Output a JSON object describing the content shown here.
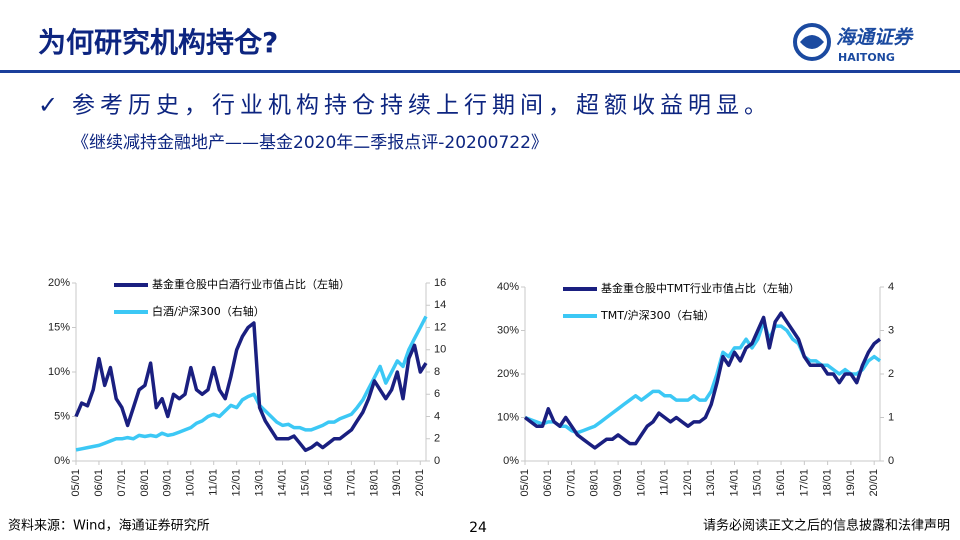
{
  "header": {
    "title": "为何研究机构持仓?",
    "logo_cn": "海通证券",
    "logo_en": "HAITONG"
  },
  "bullet": "参考历史，行业机构持仓持续上行期间，超额收益明显。",
  "source_ref": "《继续减持金融地产——基金2020年二季报点评-20200722》",
  "footer": {
    "source": "资料来源：Wind，海通证券研究所",
    "page": "24",
    "disclaimer": "请务必阅读正文之后的信息披露和法律声明"
  },
  "chart_data": [
    {
      "type": "line",
      "categories": [
        "05/01",
        null,
        null,
        null,
        "06/01",
        null,
        null,
        null,
        "07/01",
        null,
        null,
        null,
        "08/01",
        null,
        null,
        null,
        "09/01",
        null,
        null,
        null,
        "10/01",
        null,
        null,
        null,
        "11/01",
        null,
        null,
        null,
        "12/01",
        null,
        null,
        null,
        "13/01",
        null,
        null,
        null,
        "14/01",
        null,
        null,
        null,
        "15/01",
        null,
        null,
        null,
        "16/01",
        null,
        null,
        null,
        "17/01",
        null,
        null,
        null,
        "18/01",
        null,
        null,
        null,
        "19/01",
        null,
        null,
        null,
        "20/01",
        null
      ],
      "series": [
        {
          "name": "基金重仓股中白酒行业市值占比（左轴）",
          "color": "#1a1f80",
          "axis": "y",
          "values": [
            5,
            6.5,
            6.2,
            8,
            11.5,
            8.5,
            10.5,
            7,
            6,
            4,
            6,
            8,
            8.5,
            11,
            6,
            7,
            5,
            7.5,
            7,
            7.5,
            10.5,
            8,
            7.5,
            8,
            10.5,
            8,
            7,
            9.5,
            12.5,
            14,
            15,
            15.5,
            6,
            4.5,
            3.5,
            2.5,
            2.5,
            2.5,
            2.8,
            2,
            1.2,
            1.5,
            2,
            1.5,
            2,
            2.5,
            2.5,
            3,
            3.5,
            4.5,
            5.5,
            7,
            9,
            8,
            7,
            8,
            10,
            7,
            11.5,
            13,
            10,
            11
          ]
        },
        {
          "name": "白酒/沪深300（右轴）",
          "color": "#3cc8f5",
          "axis": "y2",
          "values": [
            1,
            1.1,
            1.2,
            1.3,
            1.4,
            1.6,
            1.8,
            2,
            2,
            2.1,
            2,
            2.3,
            2.2,
            2.3,
            2.2,
            2.5,
            2.3,
            2.4,
            2.6,
            2.8,
            3,
            3.4,
            3.6,
            4,
            4.2,
            4,
            4.5,
            5,
            4.8,
            5.5,
            5.8,
            6,
            5,
            4.5,
            4,
            3.5,
            3.2,
            3.3,
            3,
            3,
            2.8,
            2.8,
            3,
            3.2,
            3.5,
            3.5,
            3.8,
            4,
            4.2,
            4.8,
            5.5,
            6.5,
            7.5,
            8.5,
            7,
            8,
            9,
            8.5,
            10,
            11,
            12,
            13
          ]
        }
      ],
      "ylim": [
        0,
        20
      ],
      "yticks": [
        {
          "value": 0,
          "label": "0%"
        },
        {
          "value": 5,
          "label": "5%"
        },
        {
          "value": 10,
          "label": "10%"
        },
        {
          "value": 15,
          "label": "15%"
        },
        {
          "value": 20,
          "label": "20%"
        }
      ],
      "y2lim": [
        0,
        16
      ],
      "y2ticks": [
        0,
        2,
        4,
        6,
        8,
        10,
        12,
        14,
        16
      ],
      "grid": false,
      "legend": "top-left"
    },
    {
      "type": "line",
      "categories": [
        "05/01",
        null,
        null,
        null,
        "06/01",
        null,
        null,
        null,
        "07/01",
        null,
        null,
        null,
        "08/01",
        null,
        null,
        null,
        "09/01",
        null,
        null,
        null,
        "10/01",
        null,
        null,
        null,
        "11/01",
        null,
        null,
        null,
        "12/01",
        null,
        null,
        null,
        "13/01",
        null,
        null,
        null,
        "14/01",
        null,
        null,
        null,
        "15/01",
        null,
        null,
        null,
        "16/01",
        null,
        null,
        null,
        "17/01",
        null,
        null,
        null,
        "18/01",
        null,
        null,
        null,
        "19/01",
        null,
        null,
        null,
        "20/01",
        null
      ],
      "series": [
        {
          "name": "基金重仓股中TMT行业市值占比（左轴）",
          "color": "#1a1f80",
          "axis": "y",
          "values": [
            10,
            9,
            8,
            8,
            12,
            9,
            8,
            10,
            8,
            6,
            5,
            4,
            3,
            4,
            5,
            5,
            6,
            5,
            4,
            4,
            6,
            8,
            9,
            11,
            10,
            9,
            10,
            9,
            8,
            9,
            9,
            10,
            13,
            18,
            24,
            22,
            25,
            23,
            26,
            27,
            30,
            33,
            26,
            32,
            34,
            32,
            30,
            28,
            24,
            22,
            22,
            22,
            20,
            20,
            18,
            20,
            20,
            18,
            22,
            25,
            27,
            28
          ]
        },
        {
          "name": "TMT/沪深300（右轴）",
          "color": "#3cc8f5",
          "axis": "y2",
          "values": [
            1,
            0.95,
            0.9,
            0.85,
            0.9,
            0.9,
            0.8,
            0.8,
            0.7,
            0.65,
            0.7,
            0.75,
            0.8,
            0.9,
            1,
            1.1,
            1.2,
            1.3,
            1.4,
            1.5,
            1.4,
            1.5,
            1.6,
            1.6,
            1.5,
            1.5,
            1.4,
            1.4,
            1.4,
            1.5,
            1.4,
            1.4,
            1.6,
            2,
            2.5,
            2.4,
            2.6,
            2.6,
            2.8,
            2.6,
            2.8,
            3.2,
            2.8,
            3.1,
            3.1,
            3,
            2.8,
            2.7,
            2.4,
            2.3,
            2.3,
            2.2,
            2.2,
            2.1,
            2,
            2.1,
            2,
            2,
            2.1,
            2.3,
            2.4,
            2.3
          ]
        }
      ],
      "ylim": [
        0,
        40
      ],
      "yticks": [
        {
          "value": 0,
          "label": "0%"
        },
        {
          "value": 10,
          "label": "10%"
        },
        {
          "value": 20,
          "label": "20%"
        },
        {
          "value": 30,
          "label": "30%"
        },
        {
          "value": 40,
          "label": "40%"
        }
      ],
      "y2lim": [
        0,
        4
      ],
      "y2ticks": [
        0,
        1,
        2,
        3,
        4
      ],
      "grid": false,
      "legend": "top-left"
    }
  ]
}
